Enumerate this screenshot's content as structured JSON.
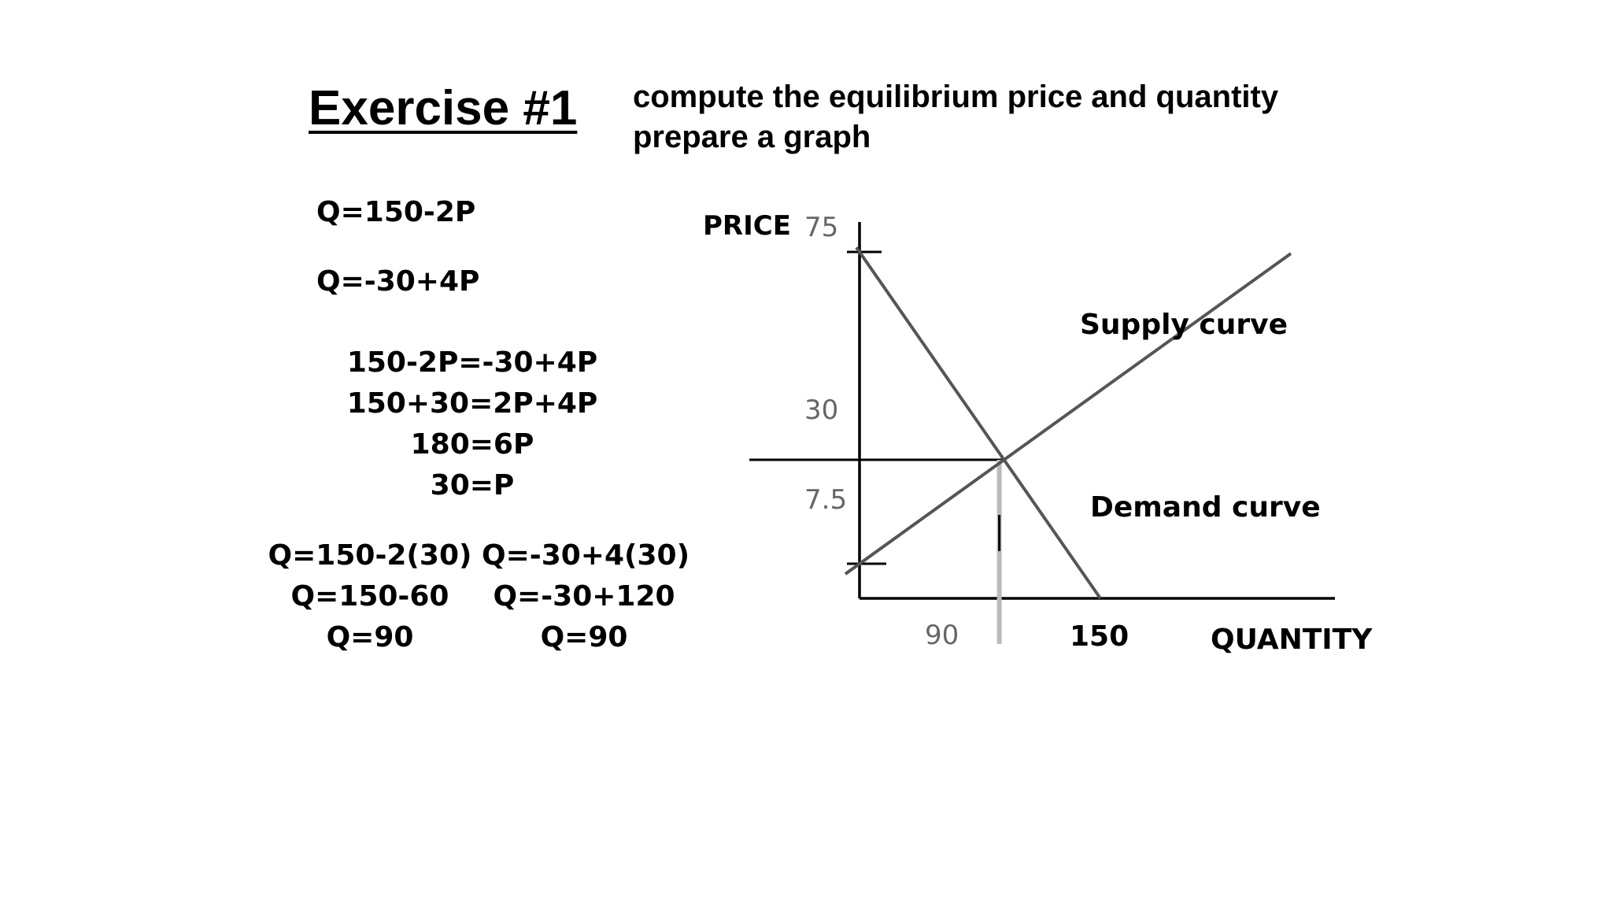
{
  "slide": {
    "title": "Exercise #1",
    "instructions": [
      "compute the equilibrium price and quantity",
      "prepare a graph"
    ]
  },
  "equations": {
    "demand": "Q=150-2P",
    "supply": "Q=-30+4P",
    "solve_steps": [
      "150-2P=-30+4P",
      "150+30=2P+4P",
      "180=6P",
      "30=P"
    ],
    "demand_check": [
      "Q=150-2(30)",
      "Q=150-60",
      "Q=90"
    ],
    "supply_check": [
      "Q=-30+4(30)",
      "Q=-30+120",
      "Q=90"
    ]
  },
  "graph": {
    "y_axis_label": "PRICE",
    "x_axis_label": "QUANTITY",
    "y_ticks": [
      "75",
      "30",
      "7.5"
    ],
    "x_ticks": [
      "90",
      "150"
    ],
    "supply_label": "Supply curve",
    "demand_label": "Demand curve"
  },
  "chart_data": {
    "type": "line",
    "xlabel": "QUANTITY",
    "ylabel": "PRICE",
    "series": [
      {
        "name": "Supply curve",
        "points": [
          [
            0,
            7.5
          ],
          [
            90,
            30
          ],
          [
            150,
            45
          ]
        ]
      },
      {
        "name": "Demand curve",
        "points": [
          [
            0,
            75
          ],
          [
            90,
            30
          ],
          [
            150,
            0
          ]
        ]
      }
    ],
    "equilibrium": {
      "x": 90,
      "y": 30
    },
    "xlim": [
      0,
      150
    ],
    "ylim": [
      0,
      75
    ]
  }
}
